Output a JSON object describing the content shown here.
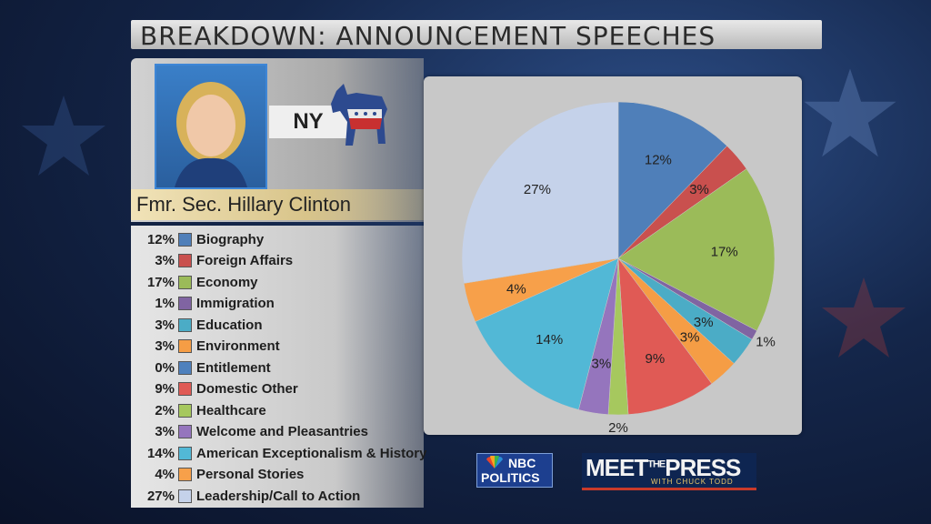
{
  "header": {
    "title": "BREAKDOWN: ANNOUNCEMENT SPEECHES"
  },
  "candidate": {
    "state": "NY",
    "name": "Fmr. Sec. Hillary Clinton",
    "party_icon": "democratic-donkey-icon"
  },
  "logos": {
    "nbc_line1": "NBC",
    "nbc_line2": "POLITICS",
    "mtp_main": "MEET",
    "mtp_the": "THE",
    "mtp_press": "PRESS",
    "mtp_sub": "WITH CHUCK TODD"
  },
  "chart_data": {
    "type": "pie",
    "title": "",
    "categories": [
      "Biography",
      "Foreign Affairs",
      "Economy",
      "Immigration",
      "Education",
      "Environment",
      "Entitlement",
      "Domestic Other",
      "Healthcare",
      "Welcome and Pleasantries",
      "American Exceptionalism & History",
      "Personal Stories",
      "Leadership/Call to Action"
    ],
    "values": [
      12,
      3,
      17,
      1,
      3,
      3,
      0,
      9,
      2,
      3,
      14,
      4,
      27
    ],
    "labels": [
      "12%",
      "3%",
      "17%",
      "1%",
      "3%",
      "3%",
      "0%",
      "9%",
      "2%",
      "3%",
      "14%",
      "4%",
      "27%"
    ],
    "colors": [
      "#4f7fb9",
      "#c9504e",
      "#9bbb59",
      "#8064a2",
      "#4bacc6",
      "#f59d45",
      "#4f81bd",
      "#e05a55",
      "#a6c85e",
      "#9575bd",
      "#52b8d6",
      "#f7a04a",
      "#c5d2ea"
    ],
    "legend_position": "left"
  }
}
